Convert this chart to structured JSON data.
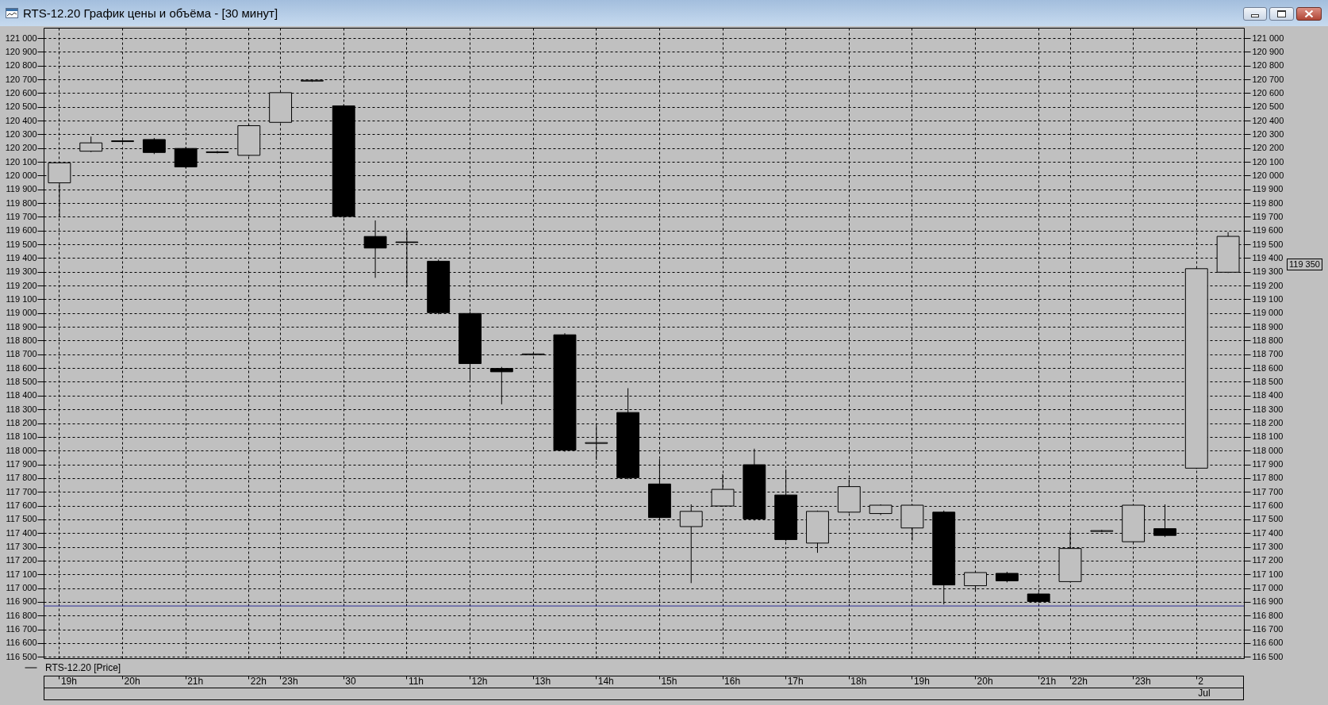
{
  "chart_data": {
    "type": "candlestick",
    "title": "RTS-12.20 График цены и объёма - [30 минут]",
    "categories": [
      "19h",
      null,
      "20h",
      null,
      "21h",
      null,
      "22h",
      "23h",
      null,
      "30",
      null,
      "11h",
      null,
      "12h",
      null,
      "13h",
      null,
      "14h",
      null,
      "15h",
      null,
      "16h",
      null,
      "17h",
      null,
      "18h",
      null,
      "19h",
      null,
      "20h",
      null,
      "21h",
      "22h",
      null,
      "23h",
      null,
      "2\nJul",
      null
    ],
    "series": [
      {
        "name": "RTS-12.20 [Price]",
        "color": "#000000",
        "ohlc": [
          [
            119950,
            120090,
            119710,
            120090
          ],
          [
            120180,
            120275,
            120180,
            120235
          ],
          [
            120250,
            120250,
            120250,
            120250
          ],
          [
            120265,
            120265,
            120165,
            120165
          ],
          [
            120200,
            120200,
            120060,
            120060
          ],
          [
            120170,
            120170,
            120170,
            120170
          ],
          [
            120150,
            120360,
            120150,
            120360
          ],
          [
            120390,
            120600,
            120390,
            120600
          ],
          [
            120690,
            120690,
            120690,
            120690
          ],
          [
            120510,
            120510,
            119700,
            119700
          ],
          [
            119560,
            119665,
            119265,
            119470
          ],
          [
            119520,
            119590,
            119200,
            119510
          ],
          [
            119380,
            119380,
            119000,
            119000
          ],
          [
            119000,
            119000,
            118520,
            118630
          ],
          [
            118600,
            118600,
            118345,
            118570
          ],
          [
            118700,
            118700,
            118700,
            118700
          ],
          [
            118845,
            118845,
            118000,
            118000
          ],
          [
            118055,
            118175,
            117940,
            118055
          ],
          [
            118280,
            118445,
            117800,
            117800
          ],
          [
            117760,
            117930,
            117510,
            117510
          ],
          [
            117450,
            117600,
            117045,
            117555
          ],
          [
            117600,
            117820,
            117600,
            117715
          ],
          [
            117900,
            118005,
            117500,
            117500
          ],
          [
            117680,
            117855,
            117350,
            117350
          ],
          [
            117330,
            117555,
            117265,
            117555
          ],
          [
            117555,
            117780,
            117555,
            117735
          ],
          [
            117545,
            117600,
            117540,
            117600
          ],
          [
            117440,
            117600,
            117355,
            117600
          ],
          [
            117555,
            117555,
            116890,
            117020
          ],
          [
            117020,
            117110,
            116985,
            117110
          ],
          [
            117110,
            117110,
            117050,
            117050
          ],
          [
            116960,
            116960,
            116900,
            116900
          ],
          [
            117050,
            117410,
            117050,
            117285
          ],
          [
            117415,
            117415,
            117415,
            117415
          ],
          [
            117340,
            117600,
            117340,
            117600
          ],
          [
            117435,
            117600,
            117380,
            117380
          ],
          [
            117875,
            119320,
            117875,
            119320
          ],
          [
            119300,
            119580,
            119300,
            119555
          ]
        ]
      }
    ],
    "ylim": [
      116490,
      121075
    ],
    "yticks": [
      {
        "value": 116500,
        "label": "116 500"
      },
      {
        "value": 116600,
        "label": "116 600"
      },
      {
        "value": 116700,
        "label": "116 700"
      },
      {
        "value": 116800,
        "label": "116 800"
      },
      {
        "value": 116900,
        "label": "116 900"
      },
      {
        "value": 117000,
        "label": "117 000"
      },
      {
        "value": 117100,
        "label": "117 100"
      },
      {
        "value": 117200,
        "label": "117 200"
      },
      {
        "value": 117300,
        "label": "117 300"
      },
      {
        "value": 117400,
        "label": "117 400"
      },
      {
        "value": 117500,
        "label": "117 500"
      },
      {
        "value": 117600,
        "label": "117 600"
      },
      {
        "value": 117700,
        "label": "117 700"
      },
      {
        "value": 117800,
        "label": "117 800"
      },
      {
        "value": 117900,
        "label": "117 900"
      },
      {
        "value": 118000,
        "label": "118 000"
      },
      {
        "value": 118100,
        "label": "118 100"
      },
      {
        "value": 118200,
        "label": "118 200"
      },
      {
        "value": 118300,
        "label": "118 300"
      },
      {
        "value": 118400,
        "label": "118 400"
      },
      {
        "value": 118500,
        "label": "118 500"
      },
      {
        "value": 118600,
        "label": "118 600"
      },
      {
        "value": 118700,
        "label": "118 700"
      },
      {
        "value": 118800,
        "label": "118 800"
      },
      {
        "value": 118900,
        "label": "118 900"
      },
      {
        "value": 119000,
        "label": "119 000"
      },
      {
        "value": 119100,
        "label": "119 100"
      },
      {
        "value": 119200,
        "label": "119 200"
      },
      {
        "value": 119300,
        "label": "119 300"
      },
      {
        "value": 119400,
        "label": "119 400"
      },
      {
        "value": 119500,
        "label": "119 500"
      },
      {
        "value": 119600,
        "label": "119 600"
      },
      {
        "value": 119700,
        "label": "119 700"
      },
      {
        "value": 119800,
        "label": "119 800"
      },
      {
        "value": 119900,
        "label": "119 900"
      },
      {
        "value": 120000,
        "label": "120 000"
      },
      {
        "value": 120100,
        "label": "120 100"
      },
      {
        "value": 120200,
        "label": "120 200"
      },
      {
        "value": 120300,
        "label": "120 300"
      },
      {
        "value": 120400,
        "label": "120 400"
      },
      {
        "value": 120500,
        "label": "120 500"
      },
      {
        "value": 120600,
        "label": "120 600"
      },
      {
        "value": 120700,
        "label": "120 700"
      },
      {
        "value": 120800,
        "label": "120 800"
      },
      {
        "value": 120900,
        "label": "120 900"
      },
      {
        "value": 121000,
        "label": "121 000"
      }
    ],
    "y2lim": [
      116490,
      121075
    ],
    "y2ticks": [
      {
        "value": 116500,
        "label": "116 500"
      },
      {
        "value": 116600,
        "label": "116 600"
      },
      {
        "value": 116700,
        "label": "116 700"
      },
      {
        "value": 116800,
        "label": "116 800"
      },
      {
        "value": 116900,
        "label": "116 900"
      },
      {
        "value": 117000,
        "label": "117 000"
      },
      {
        "value": 117100,
        "label": "117 100"
      },
      {
        "value": 117200,
        "label": "117 200"
      },
      {
        "value": 117300,
        "label": "117 300"
      },
      {
        "value": 117400,
        "label": "117 400"
      },
      {
        "value": 117500,
        "label": "117 500"
      },
      {
        "value": 117600,
        "label": "117 600"
      },
      {
        "value": 117700,
        "label": "117 700"
      },
      {
        "value": 117800,
        "label": "117 800"
      },
      {
        "value": 117900,
        "label": "117 900"
      },
      {
        "value": 118000,
        "label": "118 000"
      },
      {
        "value": 118100,
        "label": "118 100"
      },
      {
        "value": 118200,
        "label": "118 200"
      },
      {
        "value": 118300,
        "label": "118 300"
      },
      {
        "value": 118400,
        "label": "118 400"
      },
      {
        "value": 118500,
        "label": "118 500"
      },
      {
        "value": 118600,
        "label": "118 600"
      },
      {
        "value": 118700,
        "label": "118 700"
      },
      {
        "value": 118800,
        "label": "118 800"
      },
      {
        "value": 118900,
        "label": "118 900"
      },
      {
        "value": 119000,
        "label": "119 000"
      },
      {
        "value": 119100,
        "label": "119 100"
      },
      {
        "value": 119200,
        "label": "119 200"
      },
      {
        "value": 119300,
        "label": "119 300"
      },
      {
        "value": 119400,
        "label": "119 400"
      },
      {
        "value": 119500,
        "label": "119 500"
      },
      {
        "value": 119600,
        "label": "119 600"
      },
      {
        "value": 119700,
        "label": "119 700"
      },
      {
        "value": 119800,
        "label": "119 800"
      },
      {
        "value": 119900,
        "label": "119 900"
      },
      {
        "value": 120000,
        "label": "120 000"
      },
      {
        "value": 120100,
        "label": "120 100"
      },
      {
        "value": 120200,
        "label": "120 200"
      },
      {
        "value": 120300,
        "label": "120 300"
      },
      {
        "value": 120400,
        "label": "120 400"
      },
      {
        "value": 120500,
        "label": "120 500"
      },
      {
        "value": 120600,
        "label": "120 600"
      },
      {
        "value": 120700,
        "label": "120 700"
      },
      {
        "value": 120800,
        "label": "120 800"
      },
      {
        "value": 120900,
        "label": "120 900"
      },
      {
        "value": 121000,
        "label": "121 000"
      }
    ],
    "grid": true,
    "legend": "bottom left",
    "ref_lines": [
      {
        "axis": "y",
        "value": 116870,
        "color": "#30309a"
      }
    ],
    "annotations": [
      "119 350"
    ]
  }
}
